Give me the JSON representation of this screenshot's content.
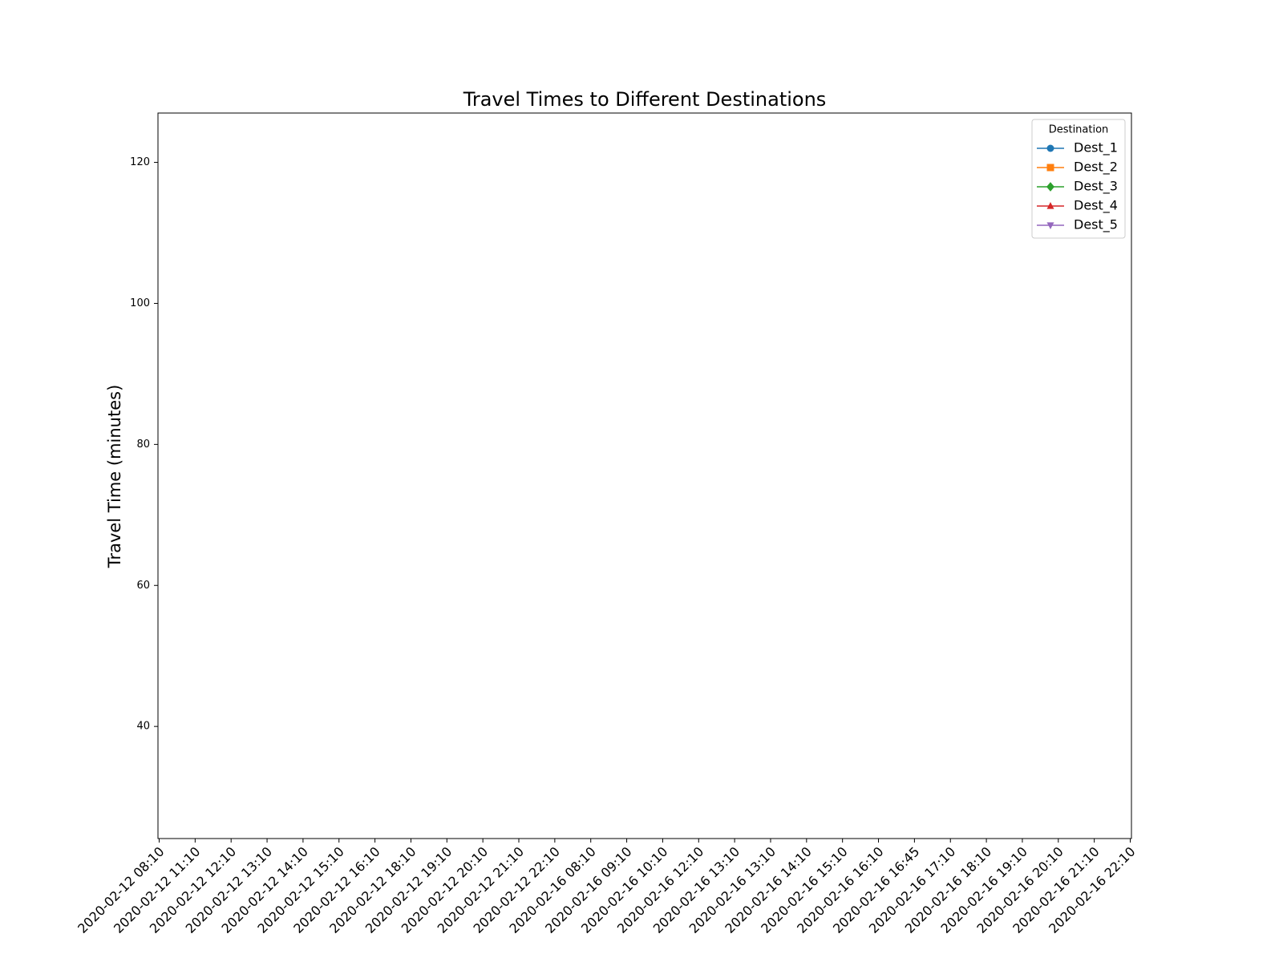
{
  "chart_data": {
    "type": "line",
    "title": "Travel Times to Different Destinations",
    "y_label": "Travel Time (minutes)",
    "legend_title": "Destination",
    "legend_position": "upper right",
    "categories": [
      "2020-02-12 08:10",
      "2020-02-12 11:10",
      "2020-02-12 12:10",
      "2020-02-12 13:10",
      "2020-02-12 14:10",
      "2020-02-12 15:10",
      "2020-02-12 16:10",
      "2020-02-12 18:10",
      "2020-02-12 19:10",
      "2020-02-12 20:10",
      "2020-02-12 21:10",
      "2020-02-12 22:10",
      "2020-02-16 08:10",
      "2020-02-16 09:10",
      "2020-02-16 10:10",
      "2020-02-16 12:10",
      "2020-02-16 13:10",
      "2020-02-16 13:10",
      "2020-02-16 14:10",
      "2020-02-16 15:10",
      "2020-02-16 16:10",
      "2020-02-16 16:45",
      "2020-02-16 17:10",
      "2020-02-16 18:10",
      "2020-02-16 19:10",
      "2020-02-16 20:10",
      "2020-02-16 21:10",
      "2020-02-16 22:10"
    ],
    "series": [
      {
        "name": "Dest_1",
        "color": "#1f77b4",
        "marker": "circle",
        "values": [
          null,
          null,
          null,
          null,
          null,
          null,
          null,
          null,
          null,
          null,
          null,
          null,
          null,
          null,
          null,
          null,
          null,
          null,
          null,
          null,
          null,
          null,
          null,
          null,
          null,
          null,
          null,
          null
        ]
      },
      {
        "name": "Dest_2",
        "color": "#ff7f0e",
        "marker": "square",
        "values": [
          null,
          null,
          null,
          null,
          null,
          null,
          null,
          null,
          null,
          null,
          null,
          null,
          null,
          null,
          null,
          null,
          null,
          null,
          null,
          null,
          null,
          null,
          null,
          null,
          null,
          null,
          null,
          null
        ]
      },
      {
        "name": "Dest_3",
        "color": "#2ca02c",
        "marker": "diamond",
        "values": [
          null,
          null,
          null,
          null,
          null,
          null,
          null,
          null,
          null,
          null,
          null,
          null,
          null,
          null,
          null,
          null,
          null,
          null,
          null,
          null,
          null,
          null,
          null,
          null,
          null,
          null,
          null,
          null
        ]
      },
      {
        "name": "Dest_4",
        "color": "#d62728",
        "marker": "triangle-up",
        "values": [
          null,
          null,
          null,
          null,
          null,
          null,
          null,
          null,
          null,
          null,
          null,
          null,
          null,
          null,
          null,
          null,
          null,
          null,
          null,
          null,
          null,
          null,
          null,
          null,
          null,
          null,
          null,
          null
        ]
      },
      {
        "name": "Dest_5",
        "color": "#9467bd",
        "marker": "triangle-down",
        "values": [
          null,
          null,
          null,
          null,
          null,
          null,
          null,
          null,
          null,
          null,
          null,
          null,
          null,
          null,
          null,
          null,
          null,
          null,
          null,
          null,
          null,
          null,
          null,
          null,
          null,
          null,
          null,
          null
        ]
      }
    ],
    "ylim": [
      24.1,
      127.0
    ],
    "yticks": [
      40,
      60,
      80,
      100,
      120
    ],
    "grid": false
  }
}
